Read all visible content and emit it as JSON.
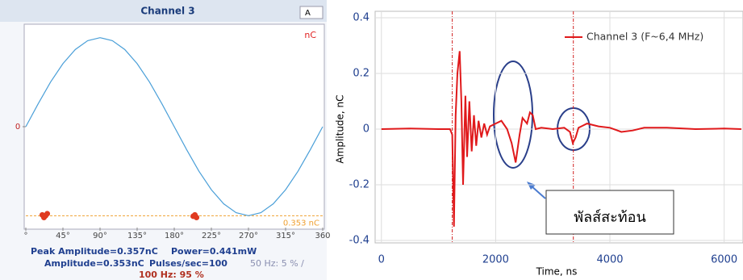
{
  "chart_data": [
    {
      "type": "line",
      "title": "Channel 3",
      "selector": "A",
      "unit_label": "nC",
      "x": [
        0,
        15,
        30,
        45,
        60,
        75,
        90,
        105,
        120,
        135,
        150,
        165,
        180,
        195,
        210,
        225,
        240,
        255,
        270,
        285,
        300,
        315,
        330,
        345,
        360
      ],
      "values": [
        0,
        0.091,
        0.177,
        0.25,
        0.306,
        0.341,
        0.353,
        0.341,
        0.306,
        0.25,
        0.177,
        0.091,
        0,
        -0.091,
        -0.177,
        -0.25,
        -0.306,
        -0.341,
        -0.353,
        -0.341,
        -0.306,
        -0.25,
        -0.177,
        -0.091,
        0
      ],
      "color": "#4a9fd8",
      "points": {
        "x": [
          20,
          22,
          24,
          26,
          203,
          205,
          207
        ],
        "values": [
          -0.35,
          -0.36,
          -0.353,
          -0.345,
          -0.355,
          -0.35,
          -0.36
        ],
        "color": "#e03a20"
      },
      "threshold": -0.353,
      "threshold_label": "0.353 nC",
      "threshold_color": "#f0a030",
      "xlim": [
        0,
        360
      ],
      "ylim": [
        -0.4,
        0.4
      ],
      "xticks": [
        {
          "value": 0,
          "label": "°"
        },
        {
          "value": 45,
          "label": "45°"
        },
        {
          "value": 90,
          "label": "90°"
        },
        {
          "value": 135,
          "label": "135°"
        },
        {
          "value": 180,
          "label": "180°"
        },
        {
          "value": 225,
          "label": "225°"
        },
        {
          "value": 270,
          "label": "270°"
        },
        {
          "value": 315,
          "label": "315°"
        },
        {
          "value": 360,
          "label": "360"
        }
      ],
      "yticks": [
        0
      ],
      "grid": false,
      "stats": [
        "Peak Amplitude=0.357nC",
        "Power=0.441mW",
        "Amplitude=0.353nC",
        "Pulses/sec=100",
        "50 Hz: 5 % /",
        "100 Hz: 95 %"
      ]
    },
    {
      "type": "line",
      "xlabel": "Time, ns",
      "ylabel": "Amplitude, nC",
      "x": [
        0,
        500,
        1000,
        1200,
        1240,
        1270,
        1300,
        1330,
        1370,
        1400,
        1430,
        1470,
        1500,
        1540,
        1580,
        1620,
        1660,
        1700,
        1750,
        1800,
        1850,
        1900,
        2000,
        2100,
        2200,
        2280,
        2350,
        2420,
        2470,
        2550,
        2600,
        2650,
        2700,
        2800,
        3000,
        3200,
        3300,
        3350,
        3400,
        3450,
        3500,
        3600,
        3800,
        4000,
        4200,
        4400,
        4600,
        5000,
        5500,
        6000,
        6300
      ],
      "series": [
        {
          "name": "Channel 3 (F~6,4 MHz)",
          "color": "#e0191b",
          "values": [
            0,
            0.002,
            0,
            0,
            -0.02,
            -0.35,
            0.05,
            0.2,
            0.28,
            0.1,
            -0.2,
            0.12,
            -0.1,
            0.1,
            -0.08,
            0.05,
            -0.06,
            0.03,
            -0.03,
            0.02,
            -0.02,
            0.01,
            0.02,
            0.03,
            0,
            -0.05,
            -0.12,
            -0.02,
            0.04,
            0.02,
            0.06,
            0.05,
            0,
            0.005,
            0,
            0.005,
            -0.01,
            -0.05,
            -0.03,
            0.005,
            0.01,
            0.02,
            0.01,
            0.005,
            -0.01,
            -0.005,
            0.005,
            0.005,
            0,
            0.002,
            0
          ]
        }
      ],
      "xlim": [
        -110,
        6330
      ],
      "ylim": [
        -0.4,
        0.4
      ],
      "xticks": [
        0,
        2000,
        4000,
        6000
      ],
      "yticks": [
        -0.4,
        -0.2,
        0,
        0.2,
        0.4
      ],
      "grid": true,
      "legend": "upper right",
      "markers": [
        1240,
        3360
      ],
      "annotation": "พัลส์สะท้อน"
    }
  ]
}
